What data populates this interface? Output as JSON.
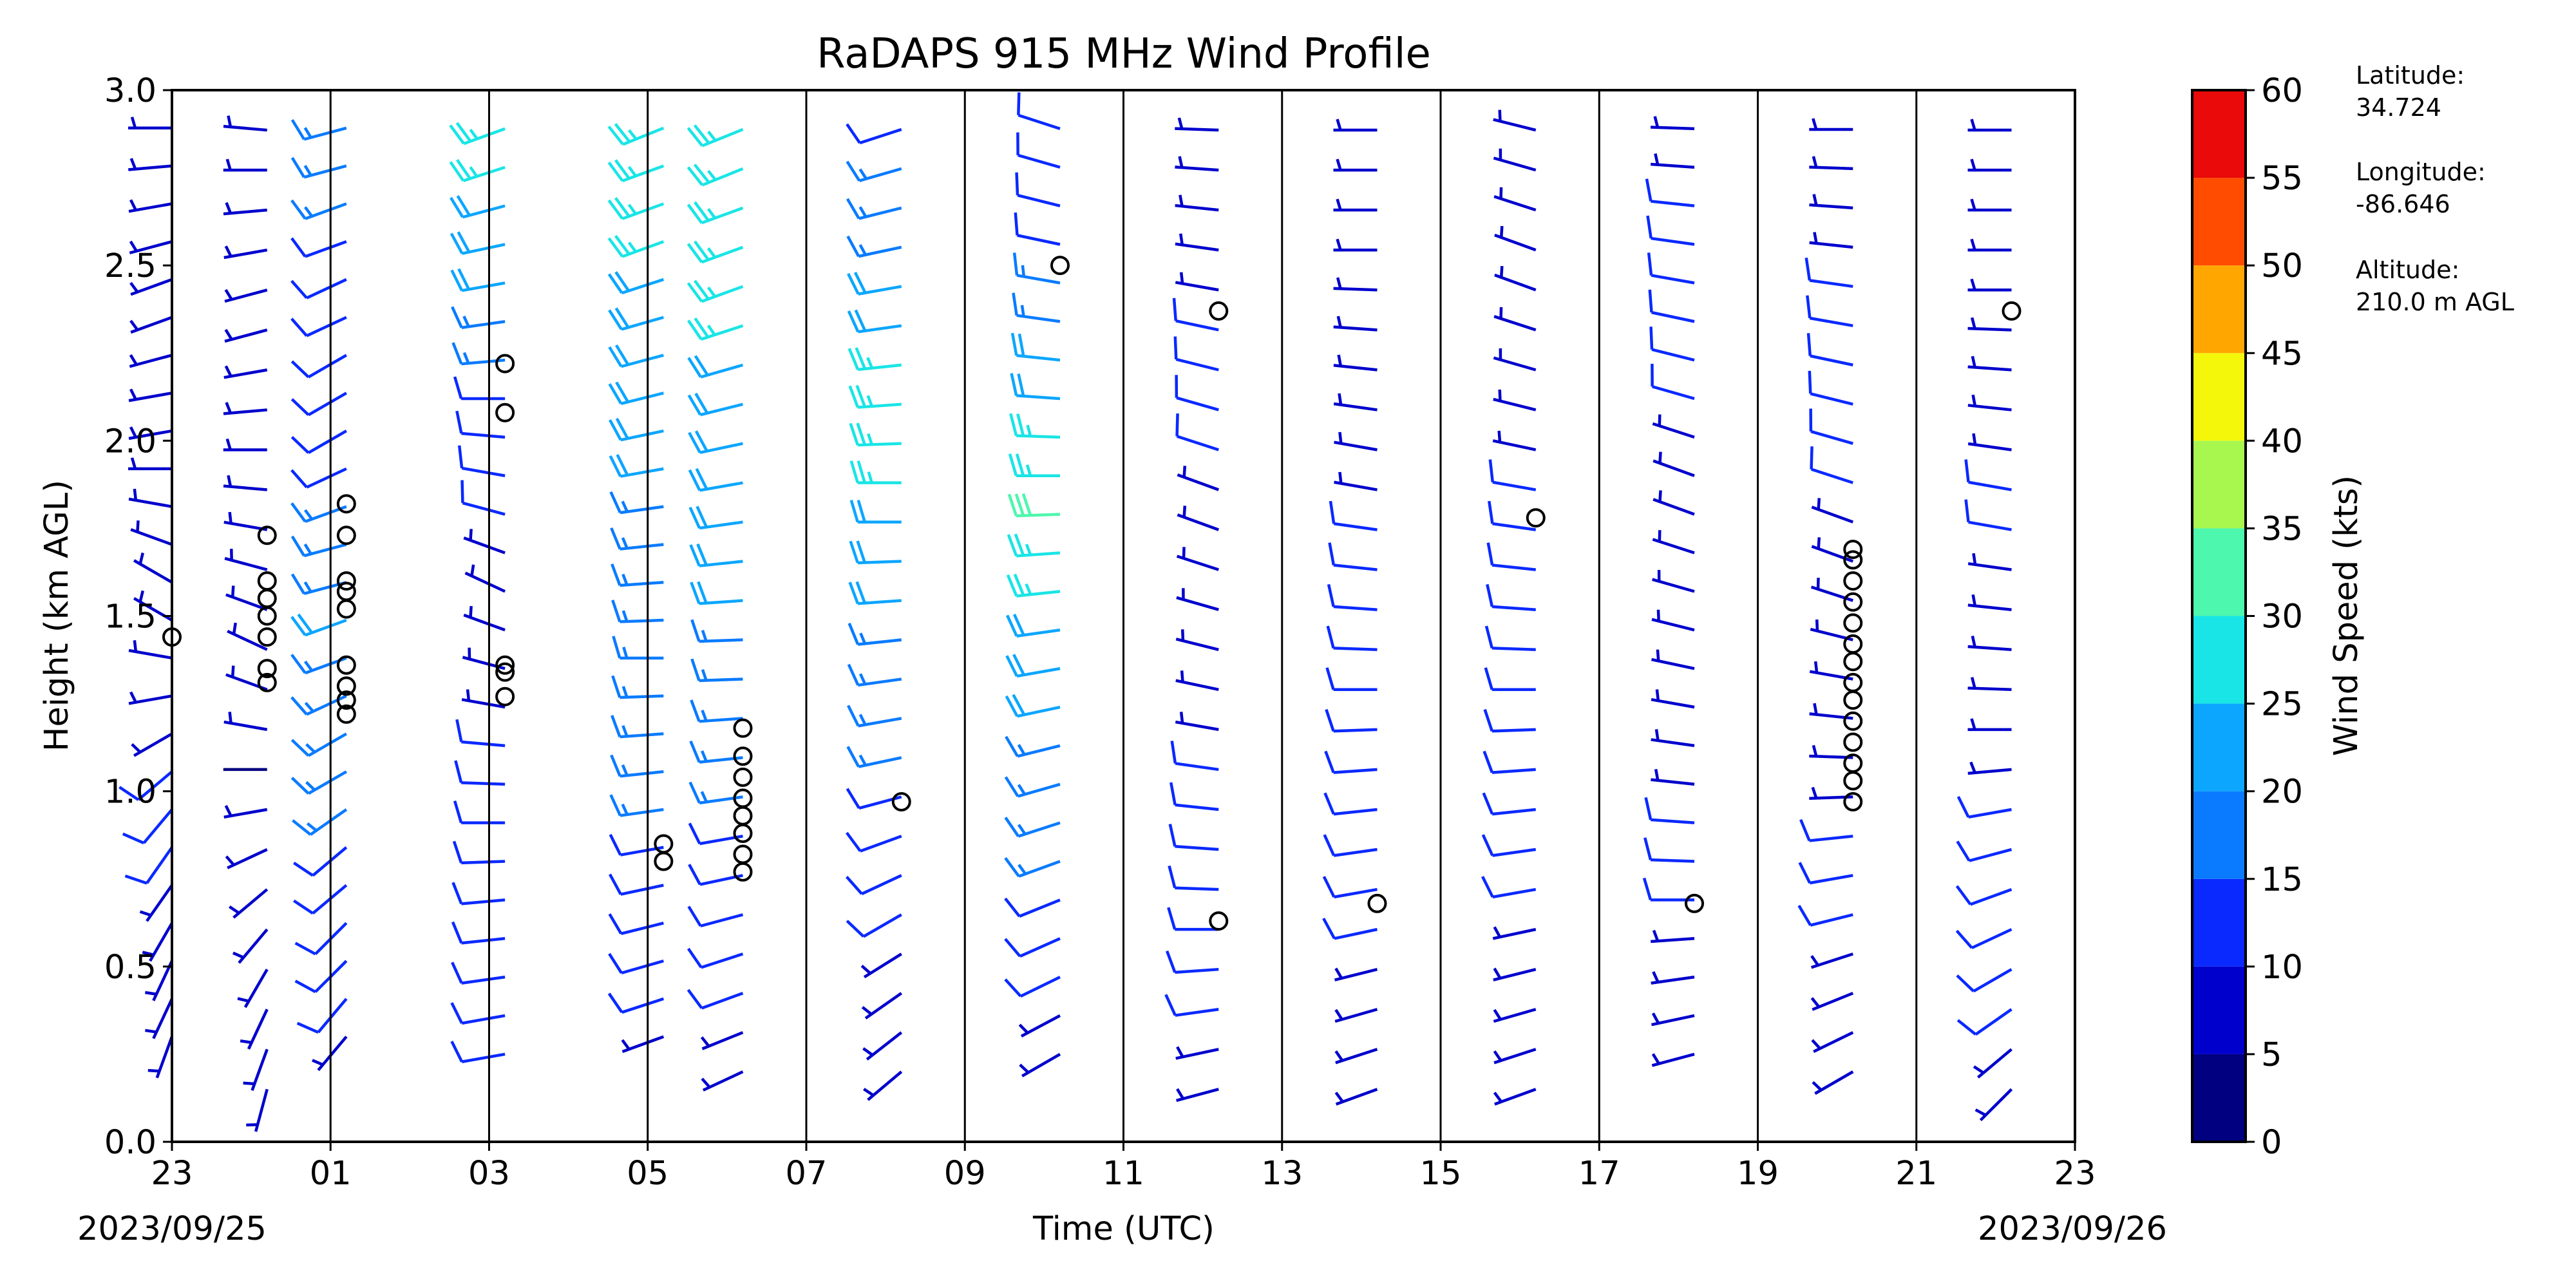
{
  "chart_data": {
    "type": "wind-barb profile",
    "title": "RaDAPS 915 MHz Wind Profile",
    "xlabel": "Time (UTC)",
    "ylabel": "Height (km AGL)",
    "x_ticks": [
      "23",
      "01",
      "03",
      "05",
      "07",
      "09",
      "11",
      "13",
      "15",
      "17",
      "19",
      "21",
      "23"
    ],
    "start_date": "2023/09/25",
    "end_date": "2023/09/26",
    "ylim": [
      0.0,
      3.0
    ],
    "y_ticks": [
      "0.0",
      "0.5",
      "1.0",
      "1.5",
      "2.0",
      "2.5",
      "3.0"
    ],
    "colorbar": {
      "label": "Wind Speed (kts)",
      "bounds": [
        0,
        5,
        10,
        15,
        20,
        25,
        30,
        35,
        40,
        45,
        50,
        55,
        60
      ],
      "tick_labels": [
        "0",
        "5",
        "10",
        "15",
        "20",
        "25",
        "30",
        "35",
        "40",
        "45",
        "50",
        "55",
        "60"
      ],
      "colors": [
        "#000080",
        "#0000cd",
        "#0a29ff",
        "#0a7bff",
        "#0ca6ff",
        "#19e5e6",
        "#4df7ad",
        "#a7f74f",
        "#f4f70a",
        "#ffa700",
        "#ff4c00",
        "#ea0a0a",
        "#800000"
      ]
    },
    "station": {
      "latitude_label": "Latitude:",
      "latitude": "34.724",
      "longitude_label": "Longitude:",
      "longitude": "-86.646",
      "altitude_label": "Altitude:",
      "altitude": "210.0 m AGL"
    },
    "profiles": [
      {
        "hour": 23.0,
        "base": 0.3,
        "top": 3.0,
        "speed": [
          7,
          8,
          8,
          9,
          9,
          10,
          10,
          10,
          9,
          8,
          5,
          5,
          6,
          6,
          7,
          7,
          6,
          5,
          5,
          6,
          8,
          8,
          7,
          6,
          6,
          6
        ],
        "dir": [
          200,
          205,
          205,
          210,
          215,
          215,
          220,
          230,
          240,
          260,
          280,
          300,
          300,
          290,
          280,
          270,
          260,
          260,
          255,
          250,
          250,
          255,
          260,
          265,
          270,
          270
        ],
        "calm": [
          1.44
        ]
      },
      {
        "hour": 0.2,
        "base": 0.15,
        "top": 3.0,
        "speed": [
          7,
          8,
          9,
          9,
          8,
          7,
          6,
          5,
          4,
          5,
          6,
          7,
          7,
          6,
          6,
          6,
          7,
          7,
          8,
          8,
          6,
          6,
          7,
          7,
          6,
          6
        ],
        "dir": [
          195,
          200,
          205,
          210,
          220,
          230,
          245,
          260,
          270,
          280,
          290,
          295,
          290,
          285,
          280,
          275,
          270,
          265,
          260,
          255,
          255,
          260,
          265,
          270,
          275,
          280
        ],
        "calm": [
          1.31,
          1.35,
          1.44,
          1.5,
          1.55,
          1.6,
          1.73
        ]
      },
      {
        "hour": 1.2,
        "base": 0.3,
        "top": 3.0,
        "speed": [
          9,
          10,
          11,
          12,
          13,
          14,
          15,
          15,
          16,
          17,
          18,
          20,
          19,
          17,
          15,
          14,
          13,
          12,
          12,
          12,
          13,
          14,
          15,
          16,
          17,
          17
        ],
        "dir": [
          220,
          220,
          225,
          225,
          230,
          230,
          235,
          240,
          240,
          245,
          250,
          250,
          255,
          255,
          250,
          245,
          240,
          240,
          240,
          245,
          245,
          250,
          250,
          255,
          255,
          260
        ],
        "calm": [
          1.22,
          1.26,
          1.3,
          1.36,
          1.52,
          1.57,
          1.6,
          1.73,
          1.82
        ]
      },
      {
        "hour": 3.2,
        "base": 0.25,
        "top": 3.0,
        "speed": [
          10,
          10,
          11,
          11,
          12,
          12,
          12,
          11,
          10,
          9,
          8,
          8,
          8,
          9,
          10,
          11,
          12,
          14,
          16,
          18,
          20,
          22,
          24,
          27,
          28,
          29
        ],
        "dir": [
          260,
          260,
          262,
          264,
          265,
          268,
          270,
          272,
          275,
          280,
          285,
          290,
          295,
          290,
          285,
          280,
          275,
          270,
          265,
          262,
          260,
          258,
          255,
          252,
          250,
          250
        ],
        "calm": [
          1.27,
          1.34,
          1.36,
          2.08,
          2.22
        ]
      },
      {
        "hour": 5.2,
        "base": 0.3,
        "top": 3.0,
        "speed": [
          9,
          10,
          11,
          12,
          13,
          14,
          15,
          16,
          17,
          18,
          18,
          17,
          17,
          18,
          19,
          20,
          21,
          22,
          23,
          24,
          24,
          25,
          26,
          27,
          27,
          28
        ],
        "dir": [
          250,
          252,
          254,
          256,
          258,
          260,
          262,
          264,
          266,
          268,
          270,
          268,
          266,
          264,
          262,
          260,
          258,
          256,
          255,
          254,
          252,
          250,
          250,
          250,
          248,
          248
        ],
        "calm": [
          0.8,
          0.85
        ]
      },
      {
        "hour": 6.2,
        "base": 0.2,
        "top": 3.0,
        "speed": [
          8,
          9,
          10,
          11,
          12,
          13,
          14,
          15,
          16,
          17,
          18,
          19,
          20,
          21,
          22,
          22,
          23,
          24,
          24,
          25,
          25,
          26,
          26,
          27,
          27,
          28
        ],
        "dir": [
          245,
          248,
          250,
          252,
          255,
          258,
          260,
          262,
          264,
          266,
          268,
          268,
          266,
          264,
          262,
          260,
          258,
          256,
          254,
          252,
          250,
          250,
          250,
          248,
          248,
          248
        ],
        "calm": [
          0.77,
          0.82,
          0.88,
          0.93,
          0.98,
          1.04,
          1.1,
          1.18
        ]
      },
      {
        "hour": 8.2,
        "base": 0.2,
        "top": 3.0,
        "speed": [
          7,
          8,
          8,
          9,
          10,
          11,
          12,
          14,
          16,
          17,
          18,
          19,
          20,
          22,
          24,
          26,
          28,
          29,
          27,
          24,
          21,
          18,
          16,
          15,
          14,
          13
        ],
        "dir": [
          230,
          232,
          235,
          238,
          240,
          245,
          250,
          255,
          258,
          260,
          262,
          264,
          266,
          268,
          270,
          270,
          268,
          266,
          264,
          262,
          260,
          258,
          256,
          254,
          252,
          250
        ],
        "calm": [
          0.97
        ]
      },
      {
        "hour": 10.2,
        "base": 0.25,
        "top": 3.0,
        "speed": [
          8,
          9,
          10,
          12,
          14,
          16,
          17,
          18,
          19,
          20,
          22,
          24,
          26,
          28,
          30,
          29,
          27,
          24,
          21,
          18,
          15,
          13,
          11,
          10,
          10,
          9
        ],
        "dir": [
          240,
          242,
          244,
          246,
          248,
          250,
          252,
          254,
          256,
          258,
          260,
          262,
          264,
          266,
          268,
          270,
          272,
          274,
          276,
          278,
          280,
          282,
          284,
          286,
          288,
          290
        ],
        "calm": [
          2.5
        ]
      },
      {
        "hour": 12.2,
        "base": 0.15,
        "top": 3.0,
        "speed": [
          8,
          9,
          10,
          11,
          12,
          12,
          12,
          11,
          10,
          9,
          8,
          8,
          8,
          8,
          9,
          9,
          10,
          10,
          10,
          10,
          9,
          9,
          8,
          8,
          8,
          7
        ],
        "dir": [
          255,
          258,
          262,
          266,
          270,
          272,
          274,
          276,
          278,
          280,
          282,
          284,
          286,
          288,
          290,
          290,
          288,
          286,
          284,
          282,
          280,
          278,
          276,
          274,
          272,
          270
        ],
        "calm": [
          0.63,
          2.37
        ]
      },
      {
        "hour": 14.2,
        "base": 0.15,
        "top": 3.0,
        "speed": [
          8,
          8,
          9,
          9,
          10,
          10,
          11,
          11,
          12,
          12,
          12,
          11,
          11,
          10,
          10,
          9,
          9,
          9,
          8,
          8,
          8,
          8,
          7,
          7,
          7,
          7
        ],
        "dir": [
          250,
          252,
          254,
          256,
          258,
          260,
          262,
          264,
          266,
          268,
          270,
          272,
          274,
          276,
          278,
          280,
          280,
          278,
          276,
          274,
          272,
          270,
          270,
          270,
          270,
          270
        ],
        "calm": [
          0.68
        ]
      },
      {
        "hour": 16.2,
        "base": 0.15,
        "top": 3.0,
        "speed": [
          7,
          8,
          8,
          9,
          9,
          10,
          10,
          11,
          11,
          12,
          12,
          12,
          11,
          11,
          10,
          10,
          9,
          9,
          8,
          8,
          8,
          7,
          7,
          7,
          6,
          6
        ],
        "dir": [
          250,
          252,
          254,
          256,
          258,
          260,
          262,
          264,
          266,
          268,
          270,
          272,
          274,
          276,
          278,
          280,
          282,
          284,
          286,
          288,
          290,
          290,
          288,
          286,
          284,
          282
        ],
        "calm": [
          1.78
        ]
      },
      {
        "hour": 18.2,
        "base": 0.25,
        "top": 3.0,
        "speed": [
          8,
          8,
          9,
          9,
          10,
          10,
          10,
          9,
          8,
          7,
          6,
          5,
          5,
          6,
          7,
          8,
          9,
          10,
          11,
          12,
          12,
          11,
          10,
          9,
          8,
          8
        ],
        "dir": [
          255,
          258,
          262,
          266,
          270,
          272,
          274,
          276,
          278,
          280,
          282,
          284,
          286,
          288,
          290,
          290,
          288,
          286,
          284,
          282,
          280,
          278,
          276,
          274,
          272,
          270
        ],
        "calm": [
          0.68
        ]
      },
      {
        "hour": 20.2,
        "base": 0.2,
        "top": 3.0,
        "speed": [
          8,
          8,
          9,
          9,
          10,
          10,
          10,
          9,
          8,
          7,
          6,
          6,
          7,
          8,
          9,
          10,
          11,
          12,
          12,
          11,
          10,
          9,
          8,
          8,
          8,
          7
        ],
        "dir": [
          240,
          244,
          248,
          252,
          256,
          260,
          264,
          268,
          272,
          276,
          280,
          284,
          288,
          290,
          290,
          288,
          286,
          284,
          282,
          280,
          278,
          276,
          274,
          272,
          270,
          270
        ],
        "calm": [
          0.97,
          1.03,
          1.08,
          1.14,
          1.2,
          1.26,
          1.31,
          1.37,
          1.42,
          1.48,
          1.54,
          1.6,
          1.66,
          1.69
        ]
      },
      {
        "hour": 22.2,
        "base": 0.15,
        "top": 3.0,
        "speed": [
          8,
          9,
          10,
          11,
          12,
          12,
          11,
          10,
          9,
          8,
          8,
          8,
          9,
          9,
          10,
          10,
          9,
          9,
          8,
          8,
          8,
          7,
          7,
          7,
          7,
          7
        ],
        "dir": [
          225,
          230,
          235,
          240,
          245,
          250,
          255,
          260,
          265,
          270,
          272,
          274,
          276,
          278,
          280,
          280,
          278,
          276,
          274,
          272,
          270,
          270,
          270,
          270,
          270,
          270
        ],
        "calm": [
          2.37
        ]
      }
    ]
  }
}
